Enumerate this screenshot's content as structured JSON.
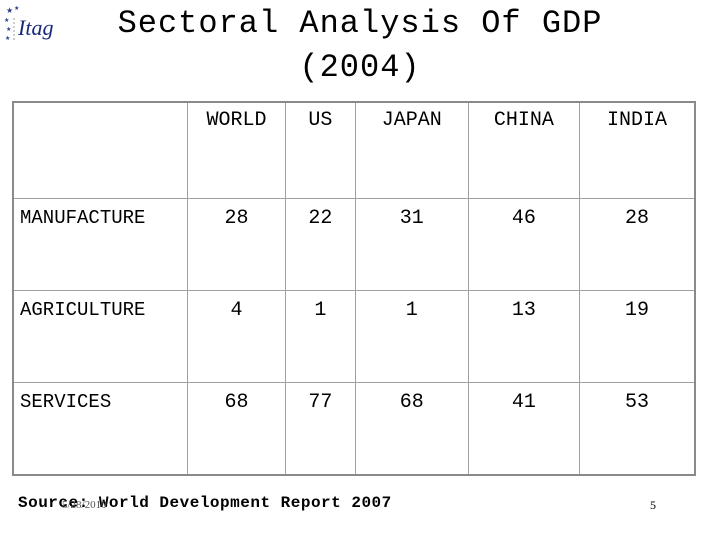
{
  "title": "Sectoral Analysis Of GDP",
  "subtitle": "(2004)",
  "logo_text": "Itag",
  "table": {
    "headers": [
      "",
      "WORLD",
      "US",
      "JAPAN",
      "CHINA",
      "INDIA"
    ],
    "rows": [
      {
        "label": "MANUFACTURE",
        "values": [
          "28",
          "22",
          "31",
          "46",
          "28"
        ]
      },
      {
        "label": "AGRICULTURE",
        "values": [
          "4",
          "1",
          "1",
          "13",
          "19"
        ]
      },
      {
        "label": "SERVICES",
        "values": [
          "68",
          "77",
          "68",
          "41",
          "53"
        ]
      }
    ]
  },
  "source": "Source: World Development Report 2007",
  "date": "5/28/2010",
  "page_number": "5"
}
